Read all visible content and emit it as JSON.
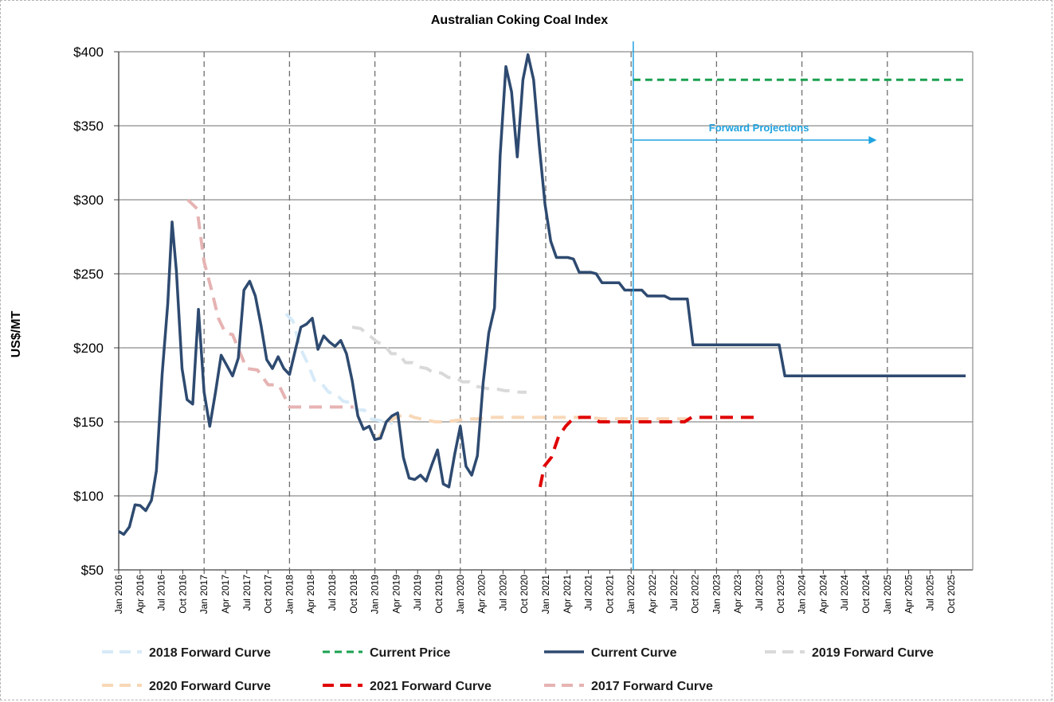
{
  "chart_data": {
    "type": "line",
    "title": "Australian Coking Coal Index",
    "ylabel": "US$/MT",
    "ylim": [
      50,
      400
    ],
    "yticks": [
      "$50",
      "$100",
      "$150",
      "$200",
      "$250",
      "$300",
      "$350",
      "$400"
    ],
    "xticks": [
      "Jan 2016",
      "Apr 2016",
      "Jul 2016",
      "Oct 2016",
      "Jan 2017",
      "Apr 2017",
      "Jul 2017",
      "Oct 2017",
      "Jan 2018",
      "Apr 2018",
      "Jul 2018",
      "Oct 2018",
      "Jan 2019",
      "Apr 2019",
      "Jul 2019",
      "Oct 2019",
      "Jan 2020",
      "Apr 2020",
      "Jul 2020",
      "Oct 2020",
      "Jan 2021",
      "Apr 2021",
      "Jul 2021",
      "Oct 2021",
      "Jan 2022",
      "Apr 2022",
      "Jul 2022",
      "Oct 2022",
      "Jan 2023",
      "Apr 2023",
      "Jul 2023",
      "Oct 2023",
      "Jan 2024",
      "Apr 2024",
      "Jul 2024",
      "Oct 2024",
      "Jan 2025",
      "Apr 2025",
      "Jul 2025",
      "Oct 2025"
    ],
    "grid": true,
    "legend_position": "bottom",
    "annotation": "Forward Projections",
    "series": [
      {
        "name": "Current Curve",
        "color": "#2e4a70",
        "style": "solid",
        "points": [
          [
            0,
            76
          ],
          [
            0.7,
            74
          ],
          [
            1.5,
            79
          ],
          [
            2.3,
            94
          ],
          [
            3,
            93.5
          ],
          [
            3.8,
            90
          ],
          [
            4.6,
            97
          ],
          [
            5.3,
            117
          ],
          [
            6.1,
            182
          ],
          [
            6.9,
            230
          ],
          [
            7.5,
            285
          ],
          [
            8.1,
            252
          ],
          [
            8.9,
            186
          ],
          [
            9.6,
            165
          ],
          [
            10.4,
            162
          ],
          [
            11.2,
            226
          ],
          [
            12,
            170
          ],
          [
            12.8,
            147
          ],
          [
            13.6,
            170
          ],
          [
            14.4,
            195
          ],
          [
            15.2,
            188
          ],
          [
            16,
            181
          ],
          [
            16.8,
            193
          ],
          [
            17.6,
            239
          ],
          [
            18.4,
            245
          ],
          [
            19.2,
            235
          ],
          [
            20,
            215
          ],
          [
            20.8,
            192
          ],
          [
            21.6,
            186
          ],
          [
            22.4,
            194
          ],
          [
            23.2,
            186
          ],
          [
            24,
            182
          ],
          [
            24.8,
            198
          ],
          [
            25.6,
            214
          ],
          [
            26.4,
            216
          ],
          [
            27.2,
            220
          ],
          [
            28,
            199
          ],
          [
            28.8,
            208
          ],
          [
            29.6,
            204
          ],
          [
            30.4,
            201
          ],
          [
            31.2,
            205
          ],
          [
            32,
            196
          ],
          [
            32.8,
            178
          ],
          [
            33.6,
            154
          ],
          [
            34.4,
            145
          ],
          [
            35.2,
            147
          ],
          [
            36,
            138
          ],
          [
            36.8,
            139
          ],
          [
            37.6,
            150
          ],
          [
            38.4,
            154
          ],
          [
            39.2,
            156
          ],
          [
            40,
            126
          ],
          [
            40.8,
            112
          ],
          [
            41.6,
            111
          ],
          [
            42.4,
            114
          ],
          [
            43.2,
            110
          ],
          [
            44,
            121
          ],
          [
            44.8,
            131
          ],
          [
            45.6,
            108
          ],
          [
            46.4,
            106
          ],
          [
            47.2,
            128
          ],
          [
            48,
            147
          ],
          [
            48.8,
            120
          ],
          [
            49.6,
            114
          ],
          [
            50.4,
            127
          ],
          [
            51.2,
            176
          ],
          [
            52,
            210
          ],
          [
            52.8,
            227
          ],
          [
            53.6,
            330
          ],
          [
            54.4,
            390
          ],
          [
            55.2,
            373
          ],
          [
            56,
            329
          ],
          [
            56.8,
            381
          ],
          [
            57.5,
            398
          ],
          [
            58.3,
            381
          ],
          [
            59.1,
            336
          ],
          [
            59.9,
            297
          ],
          [
            60.7,
            272
          ],
          [
            61.5,
            261
          ],
          [
            62.3,
            261
          ],
          [
            63.1,
            261
          ],
          [
            63.9,
            260
          ],
          [
            64.7,
            251
          ],
          [
            65.5,
            251
          ],
          [
            66.3,
            251
          ],
          [
            67.1,
            250
          ],
          [
            67.9,
            244
          ],
          [
            68.7,
            244
          ],
          [
            69.5,
            244
          ],
          [
            70.3,
            244
          ],
          [
            71.1,
            239
          ],
          [
            71.9,
            239
          ],
          [
            72.7,
            239
          ],
          [
            73.5,
            239
          ],
          [
            74.3,
            235
          ],
          [
            75.1,
            235
          ],
          [
            75.9,
            235
          ],
          [
            76.7,
            235
          ],
          [
            77.5,
            233
          ],
          [
            78.3,
            233
          ],
          [
            79.1,
            233
          ],
          [
            79.9,
            233
          ],
          [
            80.7,
            202
          ],
          [
            81.5,
            202
          ],
          [
            82.5,
            202
          ],
          [
            92,
            202
          ],
          [
            92.8,
            202
          ],
          [
            93.6,
            181
          ],
          [
            94.4,
            181
          ],
          [
            95.2,
            181
          ],
          [
            119,
            181
          ]
        ]
      },
      {
        "name": "Current Price",
        "color": "#1aa050",
        "style": "dashed",
        "points": [
          [
            72.3,
            381
          ],
          [
            119,
            381
          ]
        ]
      },
      {
        "name": "2017 Forward Curve",
        "color": "#e6b3b3",
        "style": "dashed",
        "points": [
          [
            9.7,
            300
          ],
          [
            11,
            294
          ],
          [
            12,
            258
          ],
          [
            13,
            240
          ],
          [
            14,
            220
          ],
          [
            15,
            210
          ],
          [
            16,
            209
          ],
          [
            17,
            197
          ],
          [
            18,
            186
          ],
          [
            19.5,
            185
          ],
          [
            21,
            175
          ],
          [
            22.5,
            175
          ],
          [
            24,
            160
          ],
          [
            25.5,
            160
          ],
          [
            27,
            160
          ],
          [
            28.5,
            160
          ],
          [
            30,
            160
          ],
          [
            31.5,
            160
          ],
          [
            33,
            160
          ]
        ]
      },
      {
        "name": "2018 Forward Curve",
        "color": "#d6eaf8",
        "style": "dashed",
        "points": [
          [
            23.5,
            223
          ],
          [
            24.5,
            218
          ],
          [
            25.5,
            200
          ],
          [
            26.5,
            190
          ],
          [
            27.5,
            178
          ],
          [
            28.5,
            176
          ],
          [
            29.5,
            170
          ],
          [
            30.5,
            169
          ],
          [
            31.5,
            164
          ],
          [
            32.5,
            163
          ],
          [
            33.5,
            158
          ],
          [
            34.5,
            158
          ],
          [
            35.5,
            152
          ],
          [
            36.5,
            151
          ],
          [
            37.5,
            150
          ],
          [
            38.5,
            149
          ]
        ]
      },
      {
        "name": "2019 Forward Curve",
        "color": "#d9d9d9",
        "style": "dashed",
        "points": [
          [
            32.8,
            214
          ],
          [
            34,
            213
          ],
          [
            35.3,
            208
          ],
          [
            36.3,
            204
          ],
          [
            37.3,
            202
          ],
          [
            38.3,
            196
          ],
          [
            39.3,
            196
          ],
          [
            40.3,
            190
          ],
          [
            41.3,
            190
          ],
          [
            42.3,
            187
          ],
          [
            43.3,
            186
          ],
          [
            44.3,
            183
          ],
          [
            45.3,
            183
          ],
          [
            46.3,
            180
          ],
          [
            47.3,
            180
          ],
          [
            48.3,
            177
          ],
          [
            49.3,
            177
          ],
          [
            50.3,
            174
          ],
          [
            51.3,
            173
          ],
          [
            52.3,
            172
          ],
          [
            53.3,
            172
          ],
          [
            54.3,
            171
          ],
          [
            55.3,
            171
          ],
          [
            56.3,
            170
          ],
          [
            57.3,
            170
          ]
        ]
      },
      {
        "name": "2020 Forward Curve",
        "color": "#f8d8b8",
        "style": "dashed",
        "points": [
          [
            36.5,
            139
          ],
          [
            37.5,
            147
          ],
          [
            38.5,
            152
          ],
          [
            39.5,
            154
          ],
          [
            40.5,
            155
          ],
          [
            41.5,
            153
          ],
          [
            42.5,
            152
          ],
          [
            43.5,
            151
          ],
          [
            44.5,
            150
          ],
          [
            46,
            150
          ],
          [
            47.5,
            151
          ],
          [
            49,
            152
          ],
          [
            50.5,
            152
          ],
          [
            52,
            153
          ],
          [
            54,
            153
          ],
          [
            56,
            153
          ],
          [
            58,
            153
          ],
          [
            60,
            153
          ],
          [
            62,
            153
          ],
          [
            64,
            153
          ],
          [
            66,
            153
          ],
          [
            68,
            152
          ],
          [
            70,
            152
          ],
          [
            72,
            152
          ],
          [
            74,
            152
          ],
          [
            76,
            152
          ],
          [
            78,
            152
          ],
          [
            80,
            152
          ]
        ]
      },
      {
        "name": "2021 Forward Curve",
        "color": "#e00000",
        "style": "dashed",
        "points": [
          [
            59.2,
            106
          ],
          [
            59.8,
            120
          ],
          [
            60.8,
            126
          ],
          [
            61.8,
            140
          ],
          [
            62.8,
            147
          ],
          [
            63.8,
            152
          ],
          [
            64.8,
            153
          ],
          [
            65.8,
            153
          ],
          [
            66.8,
            153
          ],
          [
            67.5,
            150
          ],
          [
            68.5,
            150
          ],
          [
            70,
            150
          ],
          [
            72,
            150
          ],
          [
            74,
            150
          ],
          [
            76,
            150
          ],
          [
            78,
            150
          ],
          [
            79.5,
            150
          ],
          [
            80.5,
            153
          ],
          [
            82,
            153
          ],
          [
            84,
            153
          ],
          [
            86,
            153
          ],
          [
            88,
            153
          ],
          [
            90,
            153
          ]
        ]
      }
    ],
    "legend": [
      "2018 Forward Curve",
      "Current Price",
      "Current Curve",
      "2019 Forward Curve",
      "2020 Forward Curve",
      "2021 Forward Curve",
      "2017 Forward Curve"
    ]
  }
}
